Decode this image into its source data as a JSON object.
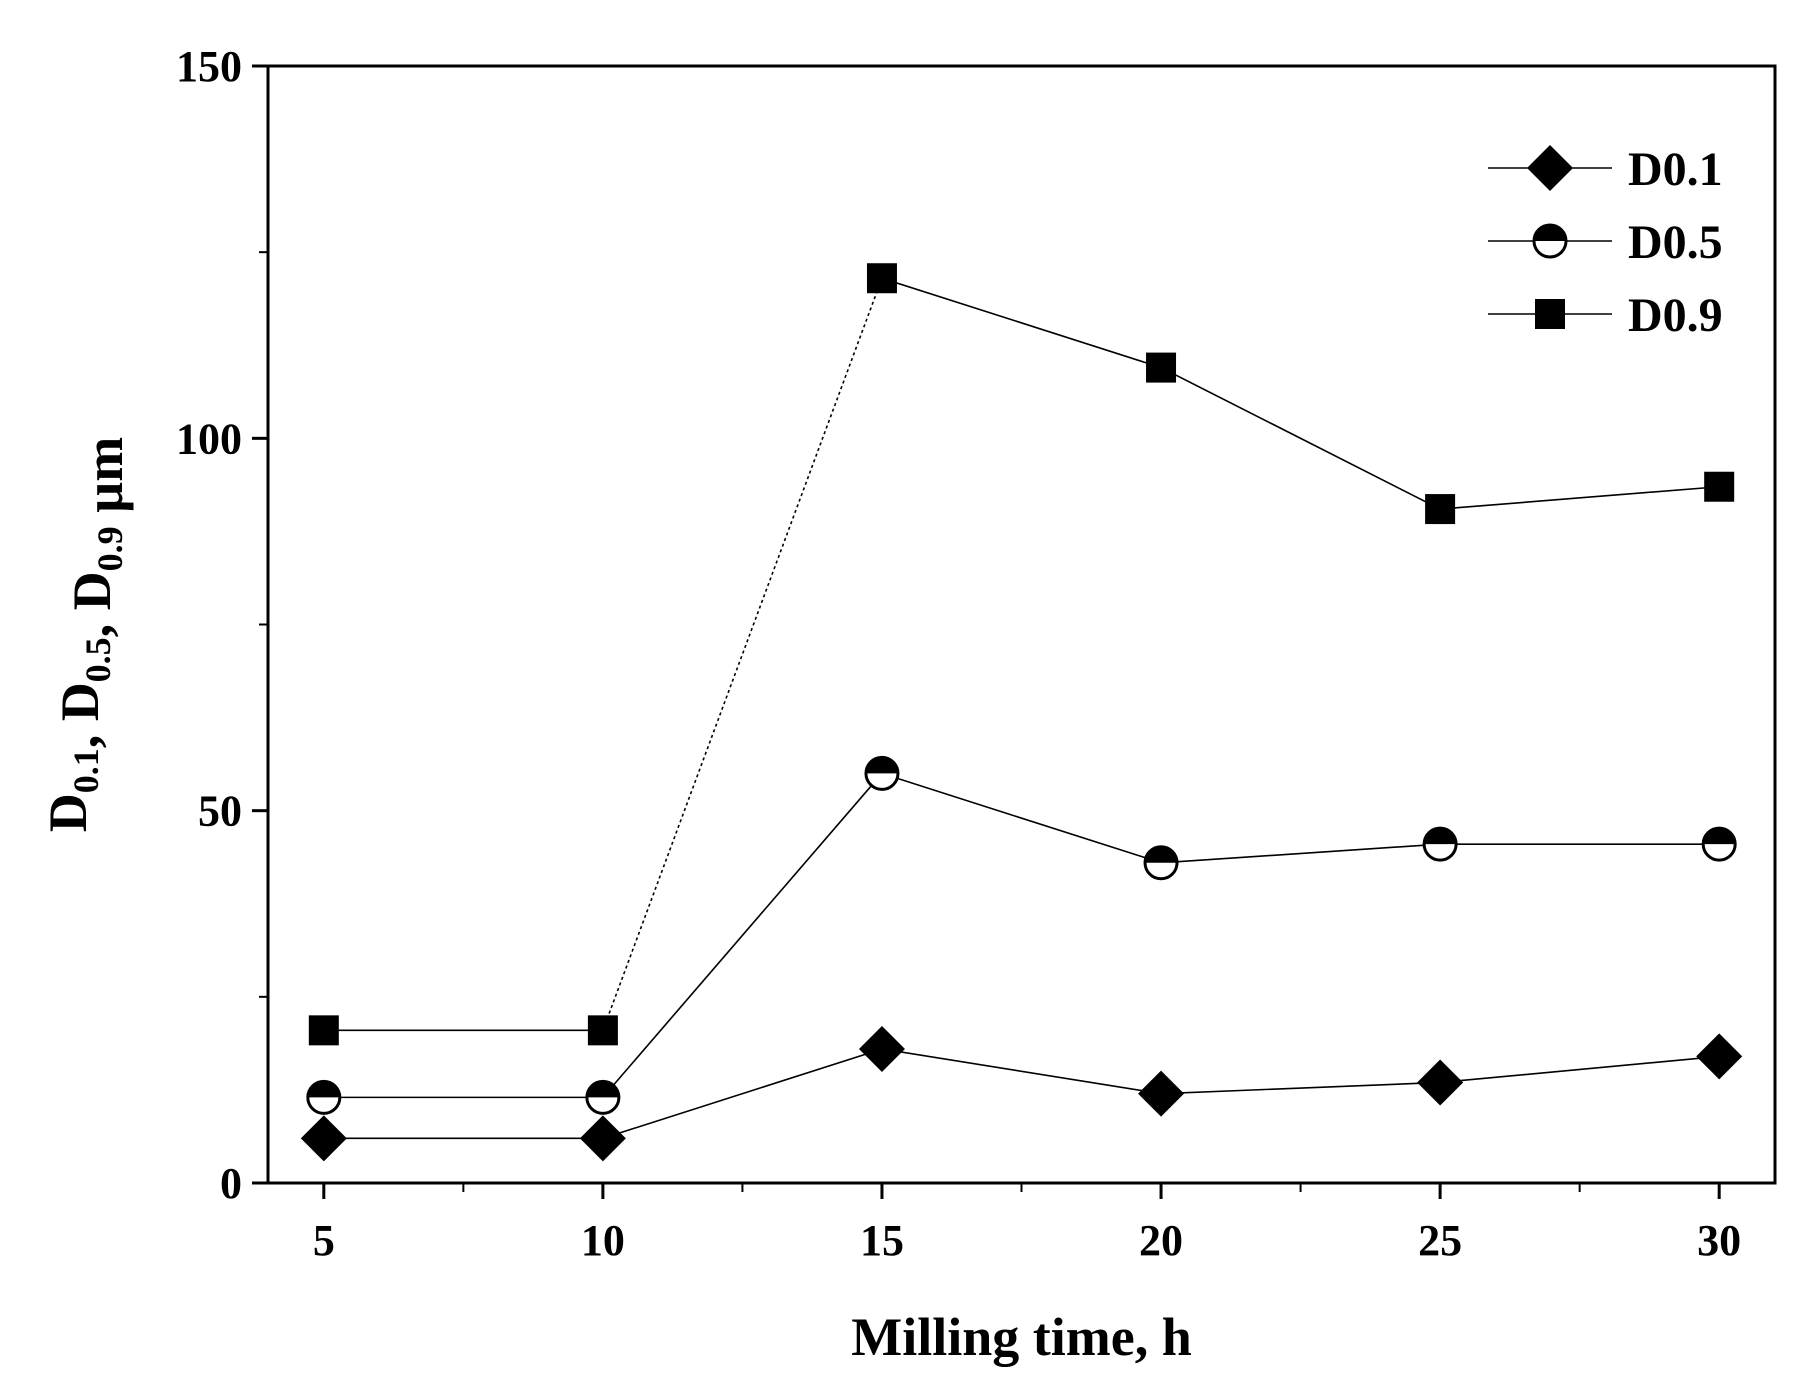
{
  "chart_data": {
    "type": "line",
    "title": "",
    "xlabel": "Milling time, h",
    "ylabel": {
      "parts": [
        {
          "text": "D",
          "sub": "0.1"
        },
        {
          "text": ", D",
          "sub": "0.5"
        },
        {
          "text": ", D",
          "sub": "0.9"
        },
        {
          "text": " µm",
          "sub": ""
        }
      ]
    },
    "x": [
      5,
      10,
      15,
      20,
      25,
      30
    ],
    "xlim": [
      4,
      31
    ],
    "ylim": [
      0,
      150
    ],
    "xticks": [
      5,
      10,
      15,
      20,
      25,
      30
    ],
    "yticks": [
      0,
      50,
      100,
      150
    ],
    "xtick_labels": [
      "5",
      "10",
      "15",
      "20",
      "25",
      "30"
    ],
    "ytick_labels": [
      "0",
      "50",
      "100",
      "150"
    ],
    "grid": false,
    "legend_position": "top-right",
    "series": [
      {
        "name": "D0.1",
        "marker": "diamond",
        "values": [
          6,
          6,
          18,
          12,
          13.5,
          17
        ]
      },
      {
        "name": "D0.5",
        "marker": "half-circle",
        "values": [
          11.5,
          11.5,
          55,
          43,
          45.5,
          45.5
        ]
      },
      {
        "name": "D0.9",
        "marker": "square",
        "values": [
          20.5,
          20.5,
          121.5,
          109.5,
          90.5,
          93.5
        ]
      }
    ],
    "colors": {
      "line": "#000000",
      "marker": "#000000",
      "background": "#ffffff"
    }
  }
}
